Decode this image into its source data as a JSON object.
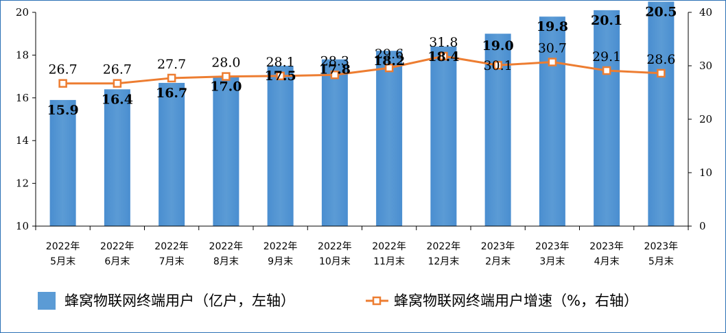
{
  "chart_data": {
    "type": "bar",
    "categories": [
      [
        "2022年",
        "5月末"
      ],
      [
        "2022年",
        "6月末"
      ],
      [
        "2022年",
        "7月末"
      ],
      [
        "2022年",
        "8月末"
      ],
      [
        "2022年",
        "9月末"
      ],
      [
        "2022年",
        "10月末"
      ],
      [
        "2022年",
        "11月末"
      ],
      [
        "2022年",
        "12月末"
      ],
      [
        "2023年",
        "2月末"
      ],
      [
        "2023年",
        "3月末"
      ],
      [
        "2023年",
        "4月末"
      ],
      [
        "2023年",
        "5月末"
      ]
    ],
    "series": [
      {
        "name": "蜂窝物联网终端用户（亿户，左轴）",
        "type": "bar",
        "axis": "left",
        "values": [
          15.9,
          16.4,
          16.7,
          17.0,
          17.5,
          17.8,
          18.2,
          18.4,
          19.0,
          19.8,
          20.1,
          20.5
        ],
        "labels": [
          "15.9",
          "16.4",
          "16.7",
          "17.0",
          "17.5",
          "17.8",
          "18.2",
          "18.4",
          "19.0",
          "19.8",
          "20.1",
          "20.5"
        ]
      },
      {
        "name": "蜂窝物联网终端用户增速（%，右轴）",
        "type": "line",
        "axis": "right",
        "values": [
          26.7,
          26.7,
          27.7,
          28.0,
          28.1,
          28.3,
          29.6,
          31.8,
          30.1,
          30.7,
          29.1,
          28.6
        ],
        "labels": [
          "26.7",
          "26.7",
          "27.7",
          "28.0",
          "28.1",
          "28.3",
          "29.6",
          "31.8",
          "30.1",
          "30.7",
          "29.1",
          "28.6"
        ]
      }
    ],
    "y_left": {
      "min": 10,
      "max": 20,
      "ticks": [
        "10",
        "12",
        "14",
        "16",
        "18",
        "20"
      ]
    },
    "y_right": {
      "min": 0,
      "max": 40,
      "ticks": [
        "0",
        "10",
        "20",
        "30",
        "40"
      ]
    },
    "legend_position": "bottom",
    "grid": false,
    "colors": {
      "bar": "#5b9bd5",
      "bar_edge": "#4f8fcf",
      "line": "#ed7d31",
      "axis": "#000000",
      "frame": "#2a6fb5"
    }
  }
}
